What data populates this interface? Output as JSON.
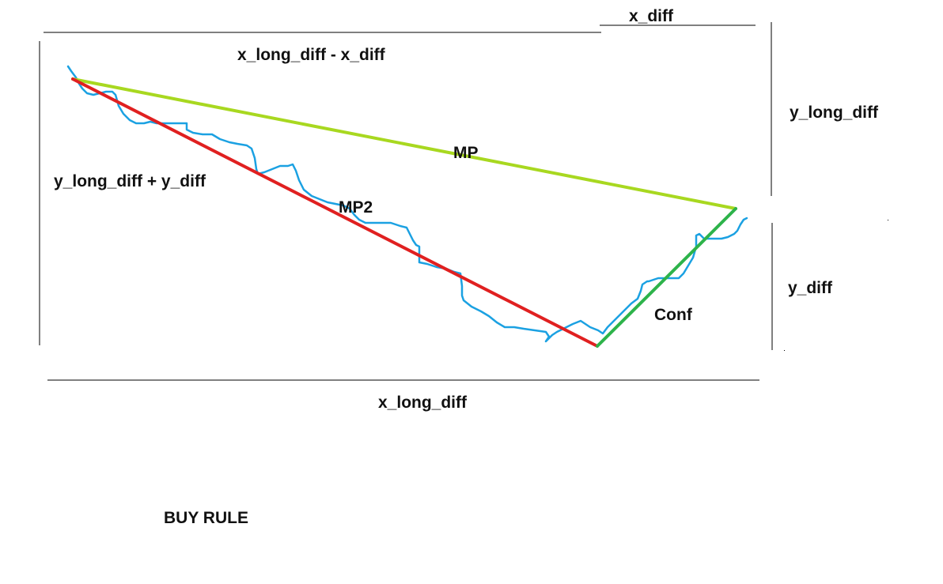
{
  "labels": {
    "x_diff": "x_diff",
    "x_long_diff_minus_x_diff": "x_long_diff - x_diff",
    "y_long_diff": "y_long_diff",
    "mp": "MP",
    "y_long_diff_plus_y_diff": "y_long_diff + y_diff",
    "mp2": "MP2",
    "y_diff": "y_diff",
    "conf": "Conf",
    "x_long_diff": "x_long_diff",
    "buy_rule": "BUY RULE"
  },
  "colors": {
    "price_line": "#1ba1e2",
    "mp_line": "#a8d820",
    "mp2_line": "#e02020",
    "conf_line": "#2db34a",
    "dimension_lines": "#000000",
    "text": "#111111"
  }
}
